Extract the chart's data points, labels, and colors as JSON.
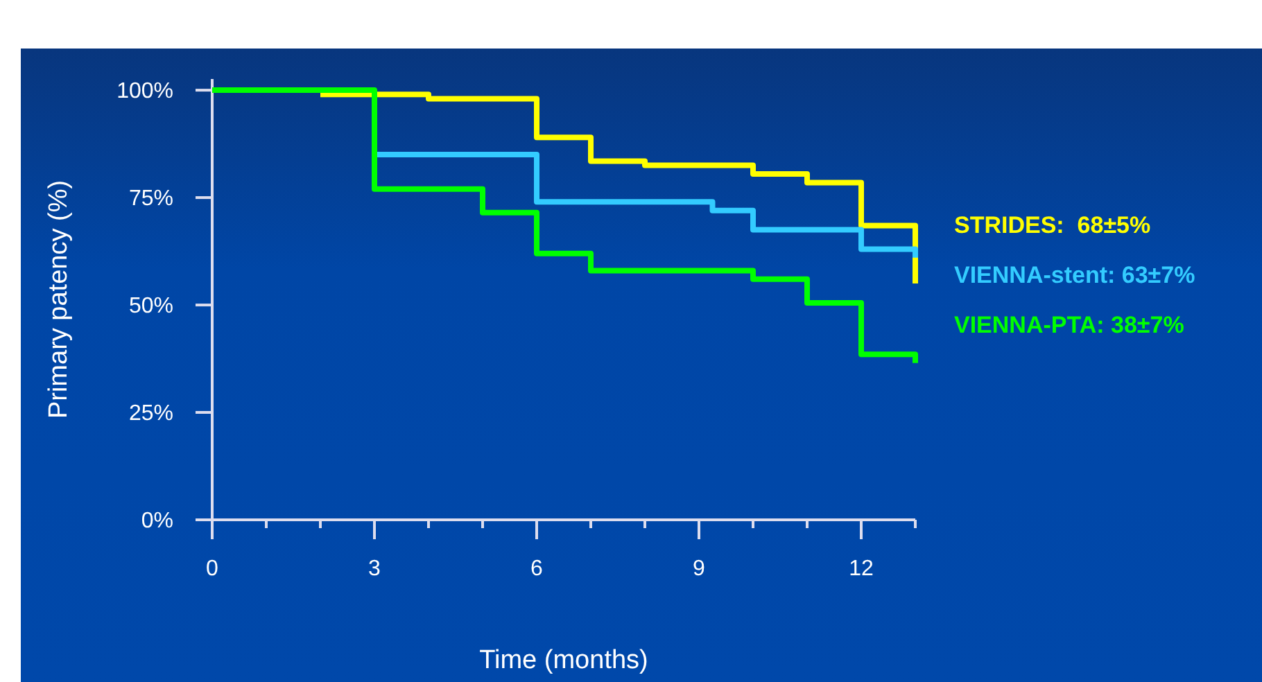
{
  "chart_data": {
    "type": "step",
    "xlabel": "Time (months)",
    "ylabel": "Primary patency (%)",
    "xlim": [
      0,
      13
    ],
    "ylim": [
      0,
      102.6
    ],
    "xticks": [
      0,
      {
        "value": 1,
        "label": null
      },
      {
        "value": 2,
        "label": null
      },
      3,
      {
        "value": 4,
        "label": null
      },
      {
        "value": 5,
        "label": null
      },
      6,
      {
        "value": 7,
        "label": null
      },
      {
        "value": 8,
        "label": null
      },
      9,
      {
        "value": 10,
        "label": null
      },
      {
        "value": 11,
        "label": null
      },
      12,
      {
        "value": 13,
        "label": null
      }
    ],
    "yticks": [
      {
        "value": 0,
        "label": "0%"
      },
      {
        "value": 25,
        "label": "25%"
      },
      {
        "value": 50,
        "label": "50%"
      },
      {
        "value": 75,
        "label": "75%"
      },
      {
        "value": 100,
        "label": "100%"
      }
    ],
    "grid": false,
    "legend": "right",
    "marker": "none",
    "line_style": "solid",
    "series": [
      {
        "name": "STRIDES:  68±5%",
        "color": "#ffff00",
        "x": [
          2,
          4,
          6,
          7,
          8,
          10,
          11,
          12,
          13
        ],
        "values": [
          99,
          98,
          89,
          83.5,
          82.5,
          80.5,
          78.5,
          68.5,
          55
        ]
      },
      {
        "name": "VIENNA-stent: 63±7%",
        "color": "#33ccff",
        "x": [
          3,
          6,
          9.25,
          10,
          12,
          13
        ],
        "values": [
          85,
          74,
          72,
          67.5,
          63,
          61
        ]
      },
      {
        "name": "VIENNA-PTA: 38±7%",
        "color": "#00ff00",
        "x": [
          0,
          3,
          5,
          6,
          7,
          10,
          11,
          12,
          13
        ],
        "values": [
          100,
          77,
          71.5,
          62,
          58,
          56,
          50.5,
          38.5,
          36.5
        ]
      }
    ]
  }
}
